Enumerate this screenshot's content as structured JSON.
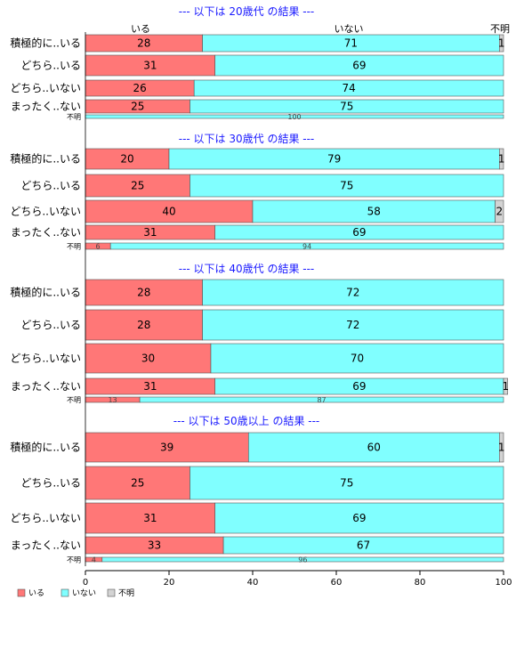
{
  "colors": {
    "iru": "#ff7777",
    "inai": "#80ffff",
    "fumei": "#d3d3d3",
    "title": "#1a1aff"
  },
  "chart_data": {
    "type": "bar",
    "orientation": "horizontal-stacked-percent",
    "legend_placement": "bottom-left",
    "series_names": [
      "いる",
      "いない",
      "不明"
    ],
    "column_headers": [
      "いる",
      "いない",
      "不明"
    ],
    "x_ticks": [
      "0",
      "20",
      "40",
      "60",
      "80",
      "100"
    ],
    "xlim": [
      0,
      100
    ],
    "panels": [
      {
        "title": "--- 以下は 20歳代 の結果 ---",
        "rows": [
          {
            "label": "積極的に..いる",
            "values": [
              28,
              71,
              1
            ]
          },
          {
            "label": "どちら..いる",
            "values": [
              31,
              69,
              0
            ]
          },
          {
            "label": "どちら..いない",
            "values": [
              26,
              74,
              0
            ]
          },
          {
            "label": "まったく..ない",
            "values": [
              25,
              75,
              0
            ]
          }
        ],
        "unknown": {
          "label": "不明",
          "values": [
            0,
            100,
            0
          ]
        }
      },
      {
        "title": "--- 以下は 30歳代 の結果 ---",
        "rows": [
          {
            "label": "積極的に..いる",
            "values": [
              20,
              79,
              1
            ]
          },
          {
            "label": "どちら..いる",
            "values": [
              25,
              75,
              0
            ]
          },
          {
            "label": "どちら..いない",
            "values": [
              40,
              58,
              2
            ]
          },
          {
            "label": "まったく..ない",
            "values": [
              31,
              69,
              0
            ]
          }
        ],
        "unknown": {
          "label": "不明",
          "values": [
            6,
            94,
            0
          ]
        }
      },
      {
        "title": "--- 以下は 40歳代 の結果 ---",
        "rows": [
          {
            "label": "積極的に..いる",
            "values": [
              28,
              72,
              0
            ]
          },
          {
            "label": "どちら..いる",
            "values": [
              28,
              72,
              0
            ]
          },
          {
            "label": "どちら..いない",
            "values": [
              30,
              70,
              0
            ]
          },
          {
            "label": "まったく..ない",
            "values": [
              31,
              69,
              1
            ]
          }
        ],
        "unknown": {
          "label": "不明",
          "values": [
            13,
            87,
            0
          ]
        }
      },
      {
        "title": "--- 以下は 50歳以上 の結果 ---",
        "rows": [
          {
            "label": "積極的に..いる",
            "values": [
              39,
              60,
              1
            ]
          },
          {
            "label": "どちら..いる",
            "values": [
              25,
              75,
              0
            ]
          },
          {
            "label": "どちら..いない",
            "values": [
              31,
              69,
              0
            ]
          },
          {
            "label": "まったく..ない",
            "values": [
              33,
              67,
              0
            ]
          }
        ],
        "unknown": {
          "label": "不明",
          "values": [
            4,
            96,
            0
          ]
        }
      }
    ]
  }
}
